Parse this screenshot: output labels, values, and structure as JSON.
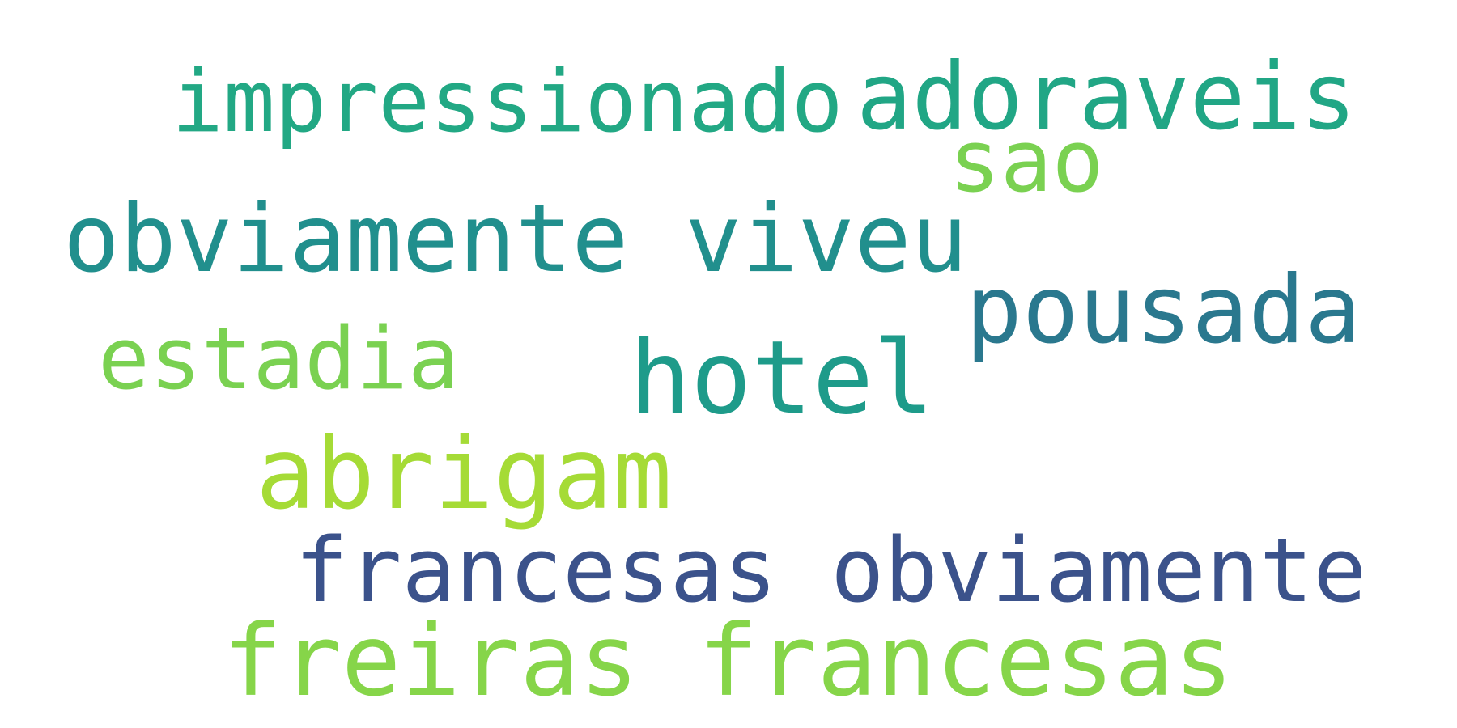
{
  "words": [
    {
      "text": "impressionado",
      "color": "#22A884"
    },
    {
      "text": "adoraveis",
      "color": "#21A685"
    },
    {
      "text": "sao",
      "color": "#7AD151"
    },
    {
      "text": "obviamente viveu",
      "color": "#218F8D"
    },
    {
      "text": "pousada",
      "color": "#2A788E"
    },
    {
      "text": "estadia",
      "color": "#7AD151"
    },
    {
      "text": "hotel",
      "color": "#1E9B8A"
    },
    {
      "text": "abrigam",
      "color": "#A5DB36"
    },
    {
      "text": "francesas obviamente",
      "color": "#3B528B"
    },
    {
      "text": "freiras francesas",
      "color": "#86D549"
    }
  ]
}
